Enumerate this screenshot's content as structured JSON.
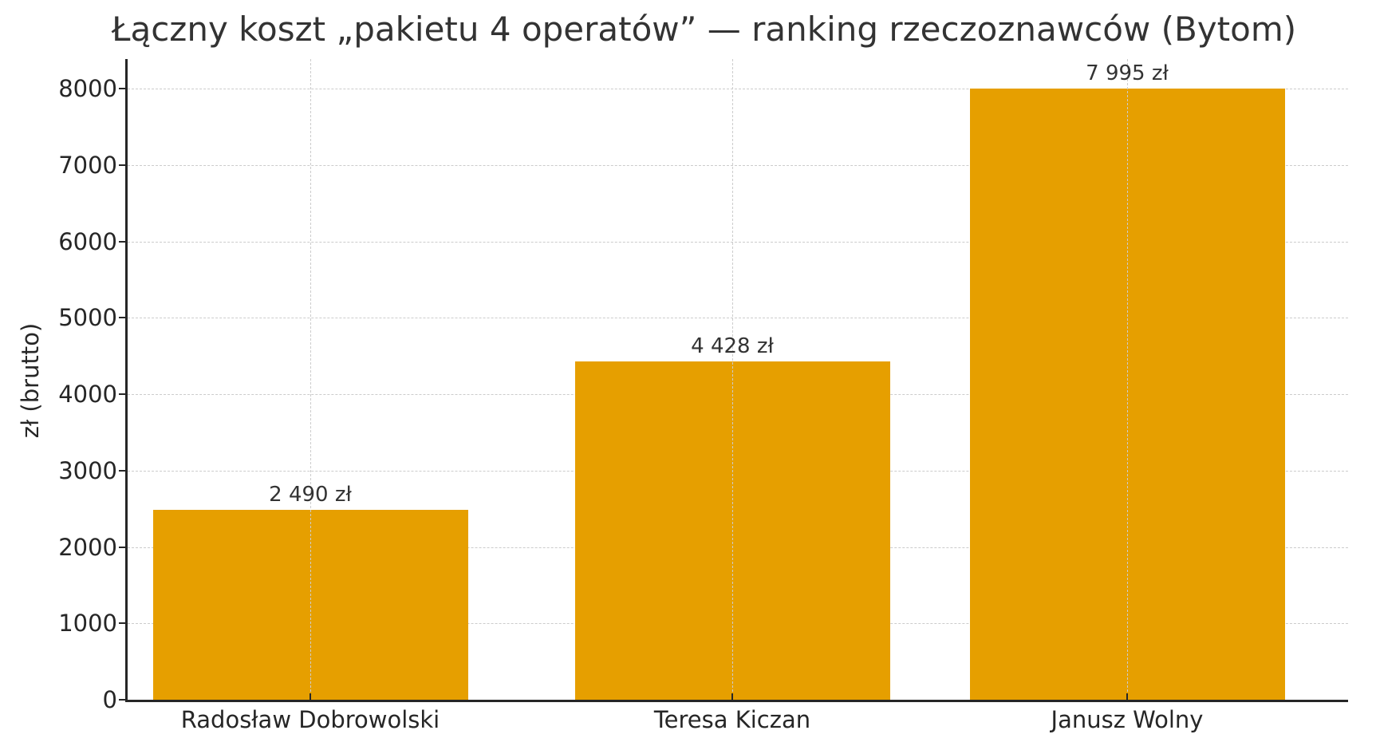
{
  "chart_data": {
    "type": "bar",
    "title": "Łączny koszt „pakietu 4 operatów” — ranking rzeczoznawców (Bytom)",
    "xlabel": "",
    "ylabel": "zł (brutto)",
    "categories": [
      "Radosław Dobrowolski",
      "Teresa Kiczan",
      "Janusz Wolny"
    ],
    "values": [
      2490,
      4428,
      7995
    ],
    "value_labels": [
      "2 490 zł",
      "4 428 zł",
      "7 995 zł"
    ],
    "ylim": [
      0,
      8400
    ],
    "yticks": [
      0,
      1000,
      2000,
      3000,
      4000,
      5000,
      6000,
      7000,
      8000
    ],
    "ytick_labels": [
      "0",
      "1000",
      "2000",
      "3000",
      "4000",
      "5000",
      "6000",
      "7000",
      "8000"
    ],
    "grid": true,
    "legend": null,
    "bar_color": "#e69f00"
  }
}
